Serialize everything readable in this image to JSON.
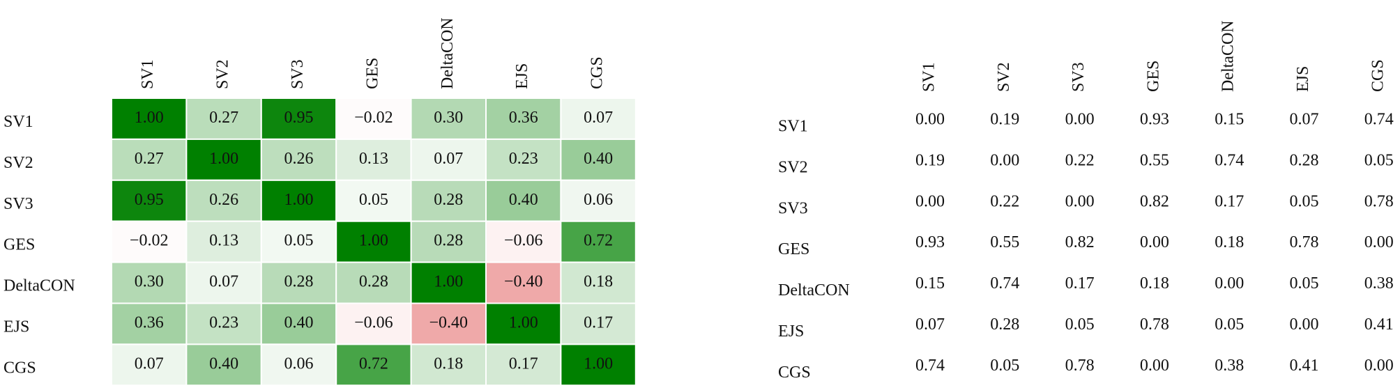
{
  "chart_data": {
    "type": "heatmap",
    "labels": [
      "SV1",
      "SV2",
      "SV3",
      "GES",
      "DeltaCON",
      "EJS",
      "CGS"
    ],
    "values": [
      [
        1.0,
        0.27,
        0.95,
        -0.02,
        0.3,
        0.36,
        0.07
      ],
      [
        0.27,
        1.0,
        0.26,
        0.13,
        0.07,
        0.23,
        0.4
      ],
      [
        0.95,
        0.26,
        1.0,
        0.05,
        0.28,
        0.4,
        0.06
      ],
      [
        -0.02,
        0.13,
        0.05,
        1.0,
        0.28,
        -0.06,
        0.72
      ],
      [
        0.3,
        0.07,
        0.28,
        0.28,
        1.0,
        -0.4,
        0.18
      ],
      [
        0.36,
        0.23,
        0.4,
        -0.06,
        -0.4,
        1.0,
        0.17
      ],
      [
        0.07,
        0.4,
        0.06,
        0.72,
        0.18,
        0.17,
        1.0
      ]
    ],
    "value_labels": [
      [
        "1.00",
        "0.27",
        "0.95",
        "−0.02",
        "0.30",
        "0.36",
        "0.07"
      ],
      [
        "0.27",
        "1.00",
        "0.26",
        "0.13",
        "0.07",
        "0.23",
        "0.40"
      ],
      [
        "0.95",
        "0.26",
        "1.00",
        "0.05",
        "0.28",
        "0.40",
        "0.06"
      ],
      [
        "−0.02",
        "0.13",
        "0.05",
        "1.00",
        "0.28",
        "−0.06",
        "0.72"
      ],
      [
        "0.30",
        "0.07",
        "0.28",
        "0.28",
        "1.00",
        "−0.40",
        "0.18"
      ],
      [
        "0.36",
        "0.23",
        "0.40",
        "−0.06",
        "−0.40",
        "1.00",
        "0.17"
      ],
      [
        "0.07",
        "0.40",
        "0.06",
        "0.72",
        "0.18",
        "0.17",
        "1.00"
      ]
    ],
    "color_positive": "#008000",
    "color_negative": "#d62728"
  },
  "table": {
    "columns": [
      "SV1",
      "SV2",
      "SV3",
      "GES",
      "DeltaCON",
      "EJS",
      "CGS"
    ],
    "rows": [
      {
        "label": "SV1",
        "cells": [
          "0.00",
          "0.19",
          "0.00",
          "0.93",
          "0.15",
          "0.07",
          "0.74"
        ]
      },
      {
        "label": "SV2",
        "cells": [
          "0.19",
          "0.00",
          "0.22",
          "0.55",
          "0.74",
          "0.28",
          "0.05"
        ]
      },
      {
        "label": "SV3",
        "cells": [
          "0.00",
          "0.22",
          "0.00",
          "0.82",
          "0.17",
          "0.05",
          "0.78"
        ]
      },
      {
        "label": "GES",
        "cells": [
          "0.93",
          "0.55",
          "0.82",
          "0.00",
          "0.18",
          "0.78",
          "0.00"
        ]
      },
      {
        "label": "DeltaCON",
        "cells": [
          "0.15",
          "0.74",
          "0.17",
          "0.18",
          "0.00",
          "0.05",
          "0.38"
        ]
      },
      {
        "label": "EJS",
        "cells": [
          "0.07",
          "0.28",
          "0.05",
          "0.78",
          "0.05",
          "0.00",
          "0.41"
        ]
      },
      {
        "label": "CGS",
        "cells": [
          "0.74",
          "0.05",
          "0.78",
          "0.00",
          "0.38",
          "0.41",
          "0.00"
        ]
      }
    ]
  }
}
